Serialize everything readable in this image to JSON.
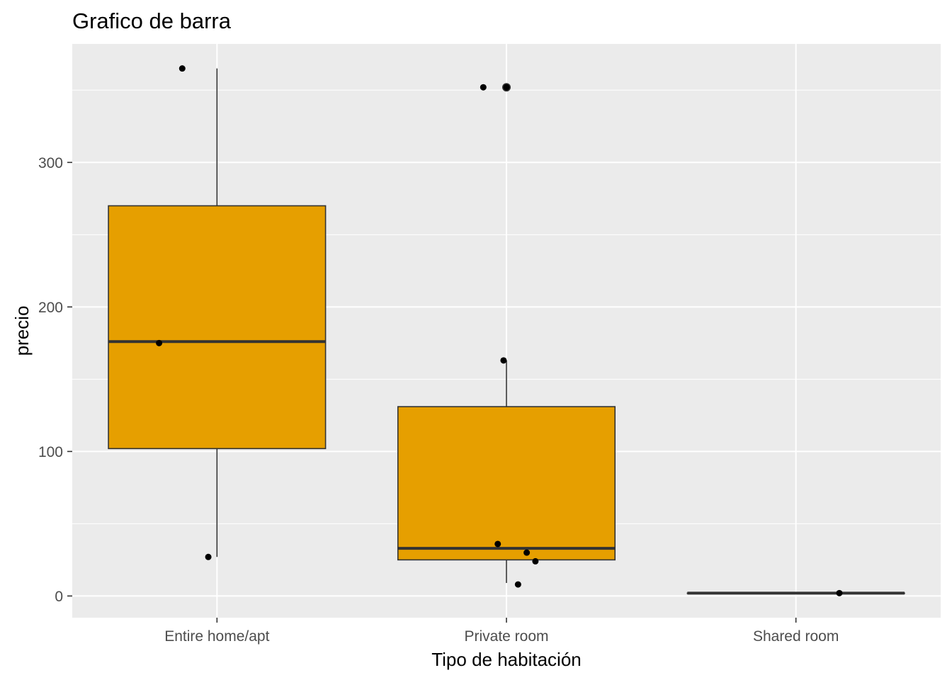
{
  "chart_data": {
    "type": "boxplot",
    "title": "Grafico de barra",
    "xlabel": "Tipo de habitación",
    "ylabel": "precio",
    "categories": [
      "Entire home/apt",
      "Private room",
      "Shared room"
    ],
    "ylim": [
      -15,
      382
    ],
    "yticks": [
      0,
      100,
      200,
      300
    ],
    "grid": true,
    "box_fill": "#E69F00",
    "box_stroke": "#333333",
    "panel_background": "#EBEBEB",
    "grid_color": "#FFFFFF",
    "point_color": "#000000",
    "boxes": [
      {
        "category": "Entire home/apt",
        "whisker_low": 27,
        "q1": 102,
        "median": 176,
        "q3": 270,
        "whisker_high": 365,
        "outliers": []
      },
      {
        "category": "Private room",
        "whisker_low": 9,
        "q1": 25,
        "median": 33,
        "q3": 131,
        "whisker_high": 163,
        "outliers": [
          352
        ]
      },
      {
        "category": "Shared room",
        "whisker_low": 2,
        "q1": 2,
        "median": 2,
        "q3": 2,
        "whisker_high": 2,
        "outliers": []
      }
    ],
    "points": [
      {
        "category": "Entire home/apt",
        "jitter": -0.12,
        "y": 365
      },
      {
        "category": "Entire home/apt",
        "jitter": -0.2,
        "y": 175
      },
      {
        "category": "Entire home/apt",
        "jitter": -0.03,
        "y": 27
      },
      {
        "category": "Private room",
        "jitter": -0.08,
        "y": 352
      },
      {
        "category": "Private room",
        "jitter": 0.0,
        "y": 352
      },
      {
        "category": "Private room",
        "jitter": -0.01,
        "y": 163
      },
      {
        "category": "Private room",
        "jitter": -0.03,
        "y": 36
      },
      {
        "category": "Private room",
        "jitter": 0.07,
        "y": 30
      },
      {
        "category": "Private room",
        "jitter": 0.1,
        "y": 24
      },
      {
        "category": "Private room",
        "jitter": 0.04,
        "y": 8
      },
      {
        "category": "Shared room",
        "jitter": 0.15,
        "y": 2
      }
    ]
  }
}
